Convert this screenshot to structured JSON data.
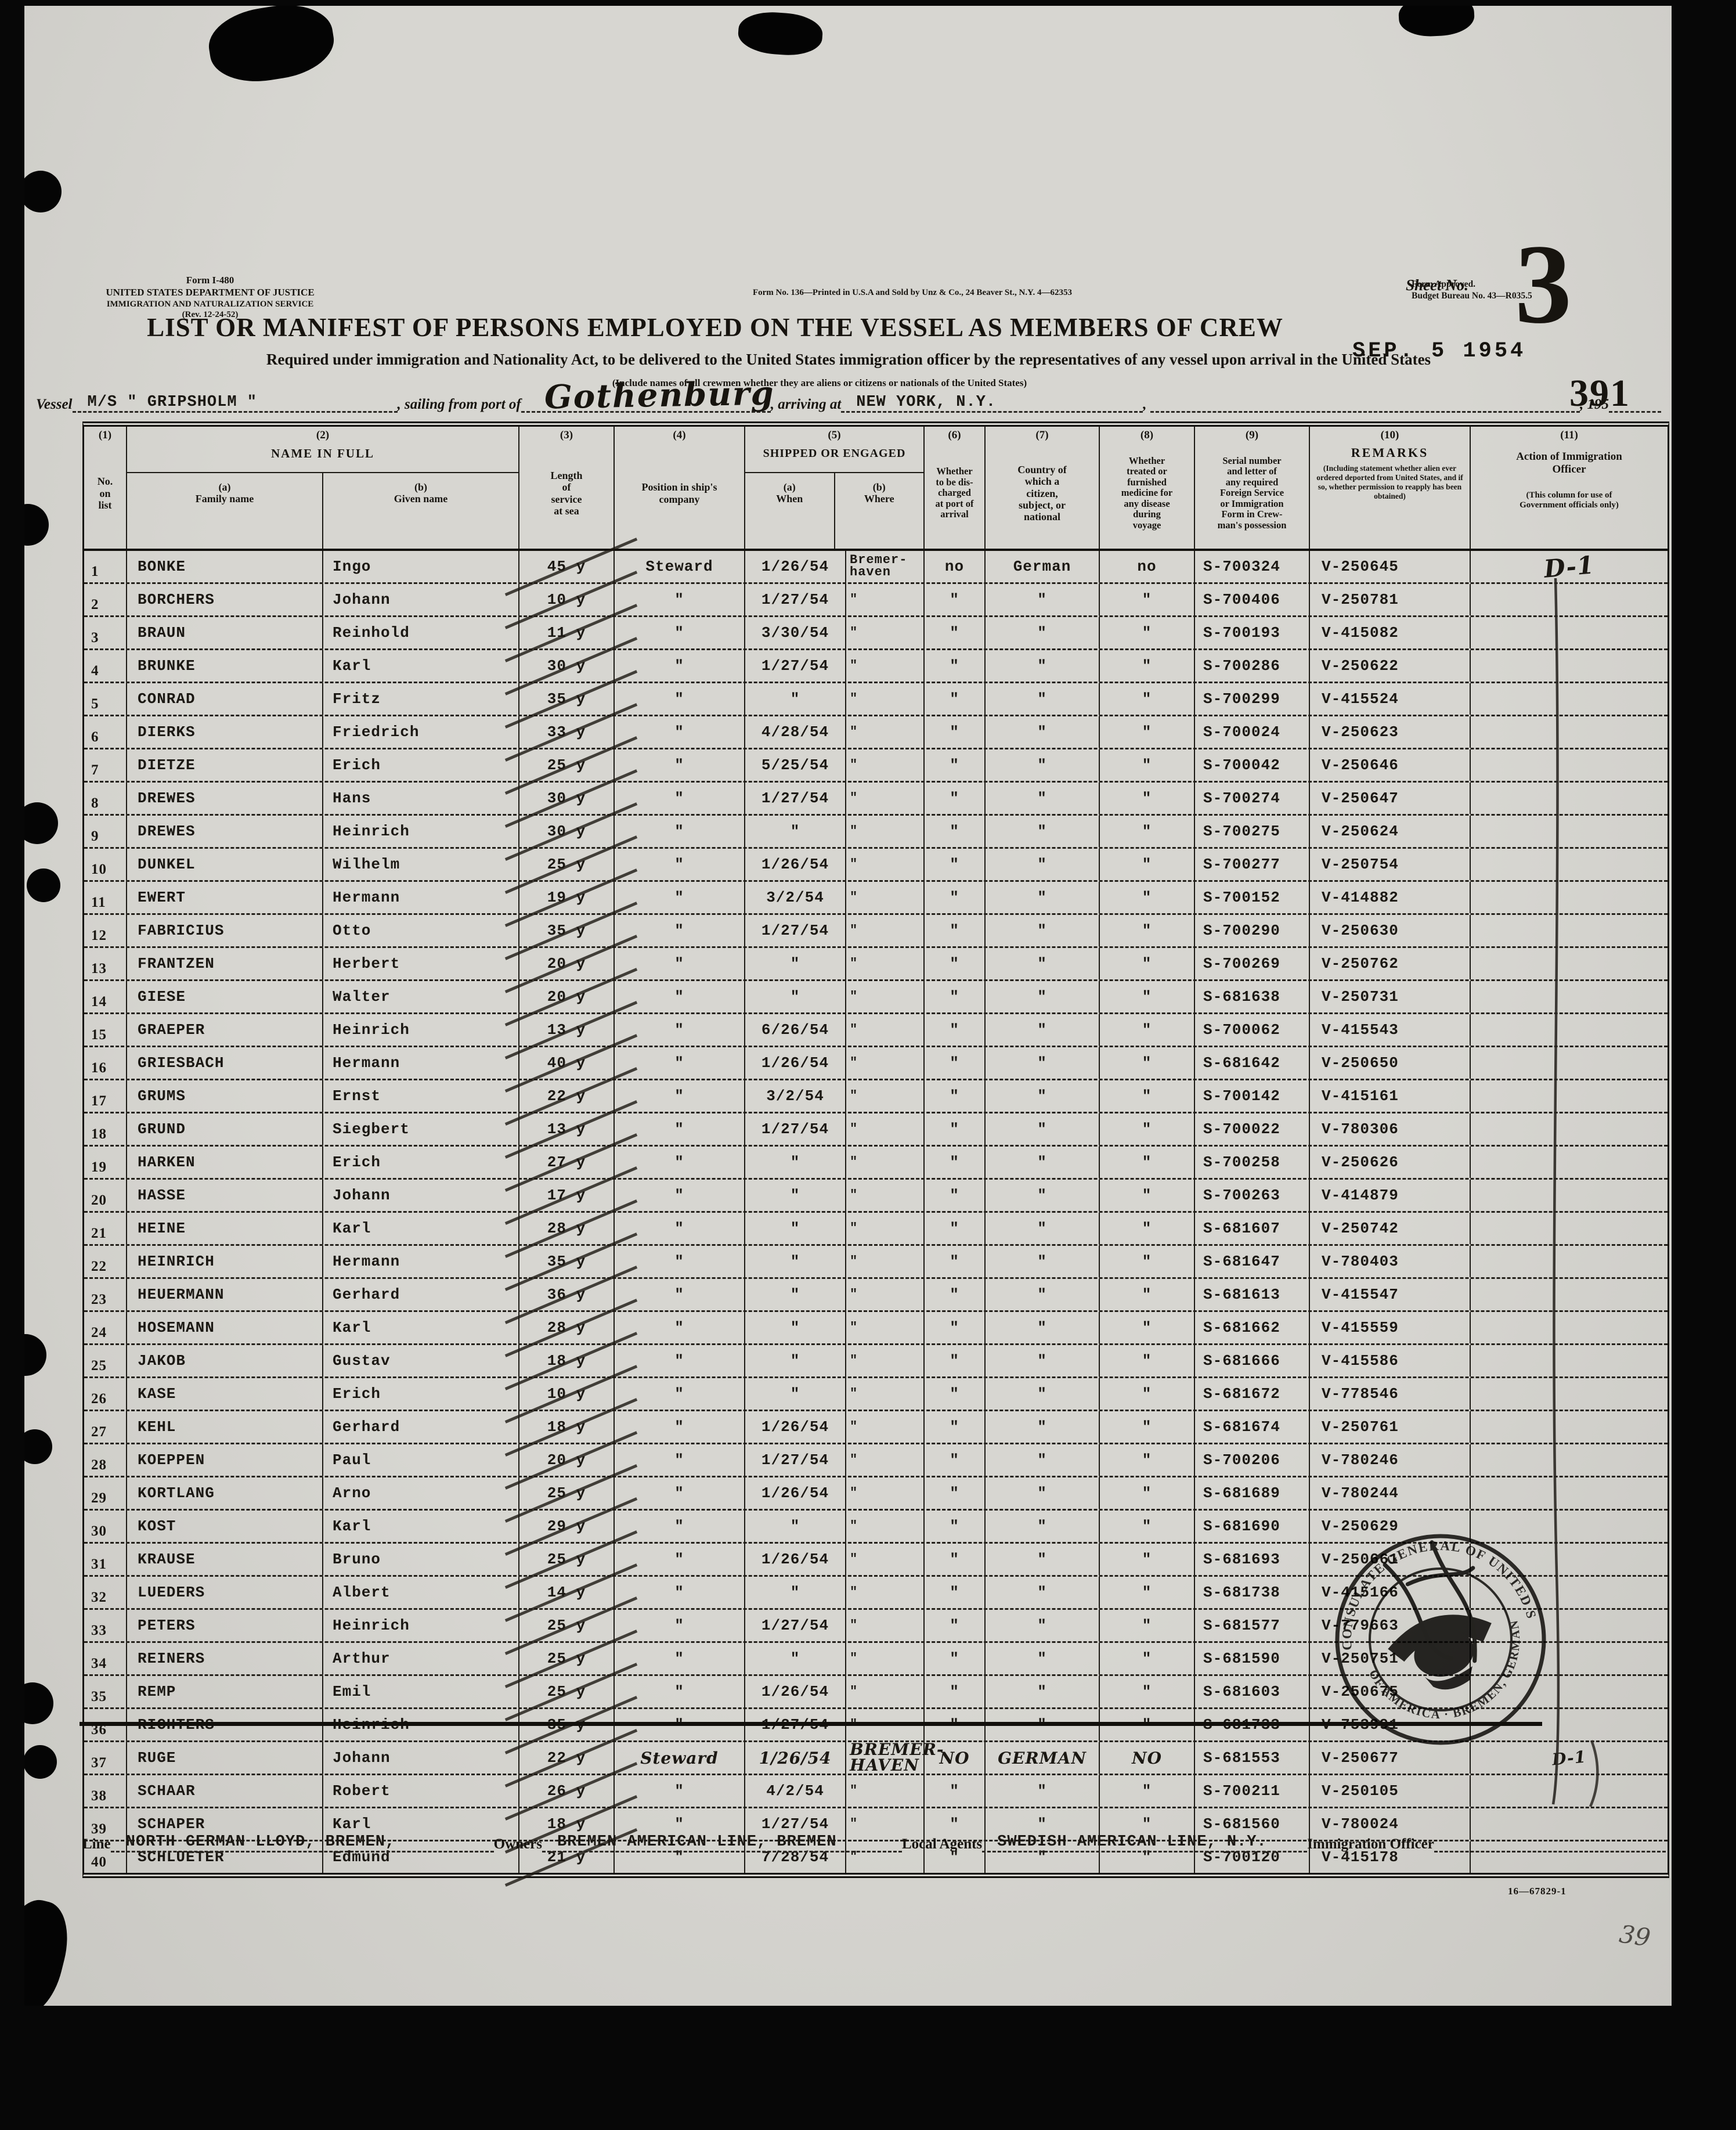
{
  "colors": {
    "paper": "#d3d2cd",
    "ink": "#17140f",
    "stamp_ink": "#1d1b18"
  },
  "form": {
    "form_id": "Form I-480",
    "agency_line1": "UNITED STATES DEPARTMENT OF JUSTICE",
    "agency_line2": "IMMIGRATION AND NATURALIZATION SERVICE",
    "revision": "(Rev. 12-24-52)",
    "print_note": "Form No. 136—Printed in U.S.A and Sold by Unz & Co., 24 Beaver St., N.Y. 4—62353",
    "approval_line1": "Form Approved.",
    "approval_line2": "Budget Bureau No. 43—R035.5",
    "title": "LIST OR MANIFEST OF PERSONS EMPLOYED ON THE VESSEL AS MEMBERS OF CREW",
    "sheet_label": "Sheet No.",
    "sheet_number": "3",
    "page_stamp": "391",
    "subtitle": "Required under immigration and Nationality Act, to be delivered to the United States immigration officer by the representatives of any vessel upon arrival in the United States",
    "include_note": "(Include names of all crewmen whether they are aliens or citizens or nationals of the United States)",
    "vessel_label": "Vessel",
    "vessel_name": "M/S \" GRIPSHOLM \"",
    "sailing_label": ", sailing from port of",
    "port_of_sailing": "Gothenburg",
    "arriving_label": ", arriving at",
    "port_of_arrival": "NEW YORK, N.Y.",
    "date_stamp": "SEP. 5 1954",
    "year_suffix": ", 195"
  },
  "table": {
    "nums": {
      "n1": "(1)",
      "n2": "(2)",
      "n3": "(3)",
      "n4": "(4)",
      "n5": "(5)",
      "n6": "(6)",
      "n7": "(7)",
      "n8": "(8)",
      "n9": "(9)",
      "n10": "(10)",
      "n11": "(11)"
    },
    "h": {
      "no": "No.\non\nlist",
      "name": "NAME IN FULL",
      "family": "(a)\nFamily name",
      "given": "(b)\nGiven name",
      "length": "Length\nof\nservice\nat sea",
      "position": "Position in ship's\ncompany",
      "shipped": "SHIPPED OR ENGAGED",
      "when": "(a)\nWhen",
      "where": "(b)\nWhere",
      "discharged": "Whether\nto be dis-\ncharged\nat port of\narrival",
      "country": "Country of\nwhich a\ncitizen,\nsubject, or\nnational",
      "medicine": "Whether\ntreated or\nfurnished\nmedicine for\nany disease\nduring\nvoyage",
      "serial": "Serial  number\nand  letter  of\nany  required\nForeign Service\nor  Immigration\nForm  in  Crew-\nman's possession",
      "remarks": "REMARKS",
      "remarks_note": "(Including statement whether alien ever ordered deported from United States, and if so, whether permission to reapply has been obtained)",
      "action": "Action  of  Immigration\nOfficer",
      "action_note": "(This column for use of\nGovernment officials only)"
    }
  },
  "rows": [
    {
      "no": "1",
      "family": "BONKE",
      "given": "Ingo",
      "length": "45 y",
      "position": "Steward",
      "when": "1/26/54",
      "where": "Bremer-\nhaven",
      "discharged": "no",
      "country": "German",
      "medicine": "no",
      "serial": "S-700324",
      "remarks": "V-250645",
      "action": "D-1"
    },
    {
      "no": "2",
      "family": "BORCHERS",
      "given": "Johann",
      "length": "10 y",
      "position": "\"",
      "when": "1/27/54",
      "where": "\"",
      "discharged": "\"",
      "country": "\"",
      "medicine": "\"",
      "serial": "S-700406",
      "remarks": "V-250781",
      "action": ""
    },
    {
      "no": "3",
      "family": "BRAUN",
      "given": "Reinhold",
      "length": "11 y",
      "position": "\"",
      "when": "3/30/54",
      "where": "\"",
      "discharged": "\"",
      "country": "\"",
      "medicine": "\"",
      "serial": "S-700193",
      "remarks": "V-415082",
      "action": ""
    },
    {
      "no": "4",
      "family": "BRUNKE",
      "given": "Karl",
      "length": "30 y",
      "position": "\"",
      "when": "1/27/54",
      "where": "\"",
      "discharged": "\"",
      "country": "\"",
      "medicine": "\"",
      "serial": "S-700286",
      "remarks": "V-250622",
      "action": ""
    },
    {
      "no": "5",
      "family": "CONRAD",
      "given": "Fritz",
      "length": "35 y",
      "position": "\"",
      "when": "\"",
      "where": "\"",
      "discharged": "\"",
      "country": "\"",
      "medicine": "\"",
      "serial": "S-700299",
      "remarks": "V-415524",
      "action": ""
    },
    {
      "no": "6",
      "family": "DIERKS",
      "given": "Friedrich",
      "length": "33 y",
      "position": "\"",
      "when": "4/28/54",
      "where": "\"",
      "discharged": "\"",
      "country": "\"",
      "medicine": "\"",
      "serial": "S-700024",
      "remarks": "V-250623",
      "action": ""
    },
    {
      "no": "7",
      "family": "DIETZE",
      "given": "Erich",
      "length": "25 y",
      "position": "\"",
      "when": "5/25/54",
      "where": "\"",
      "discharged": "\"",
      "country": "\"",
      "medicine": "\"",
      "serial": "S-700042",
      "remarks": "V-250646",
      "action": ""
    },
    {
      "no": "8",
      "family": "DREWES",
      "given": "Hans",
      "length": "30 y",
      "position": "\"",
      "when": "1/27/54",
      "where": "\"",
      "discharged": "\"",
      "country": "\"",
      "medicine": "\"",
      "serial": "S-700274",
      "remarks": "V-250647",
      "action": ""
    },
    {
      "no": "9",
      "family": "DREWES",
      "given": "Heinrich",
      "length": "30 y",
      "position": "\"",
      "when": "\"",
      "where": "\"",
      "discharged": "\"",
      "country": "\"",
      "medicine": "\"",
      "serial": "S-700275",
      "remarks": "V-250624",
      "action": ""
    },
    {
      "no": "10",
      "family": "DUNKEL",
      "given": "Wilhelm",
      "length": "25 y",
      "position": "\"",
      "when": "1/26/54",
      "where": "\"",
      "discharged": "\"",
      "country": "\"",
      "medicine": "\"",
      "serial": "S-700277",
      "remarks": "V-250754",
      "action": ""
    },
    {
      "no": "11",
      "family": "EWERT",
      "given": "Hermann",
      "length": "19 y",
      "position": "\"",
      "when": "3/2/54",
      "where": "\"",
      "discharged": "\"",
      "country": "\"",
      "medicine": "\"",
      "serial": "S-700152",
      "remarks": "V-414882",
      "action": ""
    },
    {
      "no": "12",
      "family": "FABRICIUS",
      "given": "Otto",
      "length": "35 y",
      "position": "\"",
      "when": "1/27/54",
      "where": "\"",
      "discharged": "\"",
      "country": "\"",
      "medicine": "\"",
      "serial": "S-700290",
      "remarks": "V-250630",
      "action": ""
    },
    {
      "no": "13",
      "family": "FRANTZEN",
      "given": "Herbert",
      "length": "20 y",
      "position": "\"",
      "when": "\"",
      "where": "\"",
      "discharged": "\"",
      "country": "\"",
      "medicine": "\"",
      "serial": "S-700269",
      "remarks": "V-250762",
      "action": ""
    },
    {
      "no": "14",
      "family": "GIESE",
      "given": "Walter",
      "length": "20 y",
      "position": "\"",
      "when": "\"",
      "where": "\"",
      "discharged": "\"",
      "country": "\"",
      "medicine": "\"",
      "serial": "S-681638",
      "remarks": "V-250731",
      "action": ""
    },
    {
      "no": "15",
      "family": "GRAEPER",
      "given": "Heinrich",
      "length": "13 y",
      "position": "\"",
      "when": "6/26/54",
      "where": "\"",
      "discharged": "\"",
      "country": "\"",
      "medicine": "\"",
      "serial": "S-700062",
      "remarks": "V-415543",
      "action": ""
    },
    {
      "no": "16",
      "family": "GRIESBACH",
      "given": "Hermann",
      "length": "40 y",
      "position": "\"",
      "when": "1/26/54",
      "where": "\"",
      "discharged": "\"",
      "country": "\"",
      "medicine": "\"",
      "serial": "S-681642",
      "remarks": "V-250650",
      "action": ""
    },
    {
      "no": "17",
      "family": "GRUMS",
      "given": "Ernst",
      "length": "22 y",
      "position": "\"",
      "when": "3/2/54",
      "where": "\"",
      "discharged": "\"",
      "country": "\"",
      "medicine": "\"",
      "serial": "S-700142",
      "remarks": "V-415161",
      "action": ""
    },
    {
      "no": "18",
      "family": "GRUND",
      "given": "Siegbert",
      "length": "13 y",
      "position": "\"",
      "when": "1/27/54",
      "where": "\"",
      "discharged": "\"",
      "country": "\"",
      "medicine": "\"",
      "serial": "S-700022",
      "remarks": "V-780306",
      "action": ""
    },
    {
      "no": "19",
      "family": "HARKEN",
      "given": "Erich",
      "length": "27 y",
      "position": "\"",
      "when": "\"",
      "where": "\"",
      "discharged": "\"",
      "country": "\"",
      "medicine": "\"",
      "serial": "S-700258",
      "remarks": "V-250626",
      "action": ""
    },
    {
      "no": "20",
      "family": "HASSE",
      "given": "Johann",
      "length": "17 y",
      "position": "\"",
      "when": "\"",
      "where": "\"",
      "discharged": "\"",
      "country": "\"",
      "medicine": "\"",
      "serial": "S-700263",
      "remarks": "V-414879",
      "action": ""
    },
    {
      "no": "21",
      "family": "HEINE",
      "given": "Karl",
      "length": "28 y",
      "position": "\"",
      "when": "\"",
      "where": "\"",
      "discharged": "\"",
      "country": "\"",
      "medicine": "\"",
      "serial": "S-681607",
      "remarks": "V-250742",
      "action": ""
    },
    {
      "no": "22",
      "family": "HEINRICH",
      "given": "Hermann",
      "length": "35 y",
      "position": "\"",
      "when": "\"",
      "where": "\"",
      "discharged": "\"",
      "country": "\"",
      "medicine": "\"",
      "serial": "S-681647",
      "remarks": "V-780403",
      "action": ""
    },
    {
      "no": "23",
      "family": "HEUERMANN",
      "given": "Gerhard",
      "length": "36 y",
      "position": "\"",
      "when": "\"",
      "where": "\"",
      "discharged": "\"",
      "country": "\"",
      "medicine": "\"",
      "serial": "S-681613",
      "remarks": "V-415547",
      "action": ""
    },
    {
      "no": "24",
      "family": "HOSEMANN",
      "given": "Karl",
      "length": "28 y",
      "position": "\"",
      "when": "\"",
      "where": "\"",
      "discharged": "\"",
      "country": "\"",
      "medicine": "\"",
      "serial": "S-681662",
      "remarks": "V-415559",
      "action": ""
    },
    {
      "no": "25",
      "family": "JAKOB",
      "given": "Gustav",
      "length": "18 y",
      "position": "\"",
      "when": "\"",
      "where": "\"",
      "discharged": "\"",
      "country": "\"",
      "medicine": "\"",
      "serial": "S-681666",
      "remarks": "V-415586",
      "action": ""
    },
    {
      "no": "26",
      "family": "KASE",
      "given": "Erich",
      "length": "10 y",
      "position": "\"",
      "when": "\"",
      "where": "\"",
      "discharged": "\"",
      "country": "\"",
      "medicine": "\"",
      "serial": "S-681672",
      "remarks": "V-778546",
      "action": ""
    },
    {
      "no": "27",
      "family": "KEHL",
      "given": "Gerhard",
      "length": "18 y",
      "position": "\"",
      "when": "1/26/54",
      "where": "\"",
      "discharged": "\"",
      "country": "\"",
      "medicine": "\"",
      "serial": "S-681674",
      "remarks": "V-250761",
      "action": ""
    },
    {
      "no": "28",
      "family": "KOEPPEN",
      "given": "Paul",
      "length": "20 y",
      "position": "\"",
      "when": "1/27/54",
      "where": "\"",
      "discharged": "\"",
      "country": "\"",
      "medicine": "\"",
      "serial": "S-700206",
      "remarks": "V-780246",
      "action": ""
    },
    {
      "no": "29",
      "family": "KORTLANG",
      "given": "Arno",
      "length": "25 y",
      "position": "\"",
      "when": "1/26/54",
      "where": "\"",
      "discharged": "\"",
      "country": "\"",
      "medicine": "\"",
      "serial": "S-681689",
      "remarks": "V-780244",
      "action": ""
    },
    {
      "no": "30",
      "family": "KOST",
      "given": "Karl",
      "length": "29 y",
      "position": "\"",
      "when": "\"",
      "where": "\"",
      "discharged": "\"",
      "country": "\"",
      "medicine": "\"",
      "serial": "S-681690",
      "remarks": "V-250629",
      "action": ""
    },
    {
      "no": "31",
      "family": "KRAUSE",
      "given": "Bruno",
      "length": "25 y",
      "position": "\"",
      "when": "1/26/54",
      "where": "\"",
      "discharged": "\"",
      "country": "\"",
      "medicine": "\"",
      "serial": "S-681693",
      "remarks": "V-250661",
      "action": ""
    },
    {
      "no": "32",
      "family": "LUEDERS",
      "given": "Albert",
      "length": "14 y",
      "position": "\"",
      "when": "\"",
      "where": "\"",
      "discharged": "\"",
      "country": "\"",
      "medicine": "\"",
      "serial": "S-681738",
      "remarks": "V-415166",
      "action": ""
    },
    {
      "no": "33",
      "family": "PETERS",
      "given": "Heinrich",
      "length": "25 y",
      "position": "\"",
      "when": "1/27/54",
      "where": "\"",
      "discharged": "\"",
      "country": "\"",
      "medicine": "\"",
      "serial": "S-681577",
      "remarks": "V-779663",
      "action": ""
    },
    {
      "no": "34",
      "family": "REINERS",
      "given": "Arthur",
      "length": "25 y",
      "position": "\"",
      "when": "\"",
      "where": "\"",
      "discharged": "\"",
      "country": "\"",
      "medicine": "\"",
      "serial": "S-681590",
      "remarks": "V-250751",
      "action": ""
    },
    {
      "no": "35",
      "family": "REMP",
      "given": "Emil",
      "length": "25 y",
      "position": "\"",
      "when": "1/26/54",
      "where": "\"",
      "discharged": "\"",
      "country": "\"",
      "medicine": "\"",
      "serial": "S-681603",
      "remarks": "V-250675",
      "action": ""
    },
    {
      "no": "36",
      "family": "RICHTERS",
      "given": "Heinrich",
      "length": "35 y",
      "position": "\"",
      "when": "1/27/54",
      "where": "\"",
      "discharged": "\"",
      "country": "\"",
      "medicine": "\"",
      "serial": "S-681733",
      "remarks": "V-753991",
      "action": "",
      "struck": true
    },
    {
      "no": "37",
      "family": "RUGE",
      "given": "Johann",
      "length": "22 y",
      "position": "Steward",
      "when": "1/26/54",
      "where": "BREMER-\nHAVEN",
      "discharged": "NO",
      "country": "GERMAN",
      "medicine": "NO",
      "serial": "S-681553",
      "remarks": "V-250677",
      "action": "D-1",
      "handwritten": true
    },
    {
      "no": "38",
      "family": "SCHAAR",
      "given": "Robert",
      "length": "26 y",
      "position": "\"",
      "when": "4/2/54",
      "where": "\"",
      "discharged": "\"",
      "country": "\"",
      "medicine": "\"",
      "serial": "S-700211",
      "remarks": "V-250105",
      "action": ""
    },
    {
      "no": "39",
      "family": "SCHAPER",
      "given": "Karl",
      "length": "18 y",
      "position": "\"",
      "when": "1/27/54",
      "where": "\"",
      "discharged": "\"",
      "country": "\"",
      "medicine": "\"",
      "serial": "S-681560",
      "remarks": "V-780024",
      "action": ""
    },
    {
      "no": "40",
      "family": "SCHLUETER",
      "given": "Edmund",
      "length": "21 y",
      "position": "\"",
      "when": "7/28/54",
      "where": "\"",
      "discharged": "\"",
      "country": "\"",
      "medicine": "\"",
      "serial": "S-700120",
      "remarks": "V-415178",
      "action": ""
    }
  ],
  "consulate_stamp": {
    "arc_top": "CONSULATE GENERAL OF UNITED STATES",
    "arc_bottom": "OF AMERICA · BREMEN, GERMANY"
  },
  "footer": {
    "line_label": "Line",
    "line_value": "NORTH GERMAN LLOYD, BREMEN,",
    "owners_label": "Owners",
    "owners_value": "BREMEN AMERICAN LINE, BREMEN",
    "agents_label": "Local Agents",
    "agents_value": "SWEDISH AMERICAN LINE, N.Y.",
    "officer_label": "Immigration Officer",
    "print_code": "16—67829-1",
    "pencil_note": "39"
  }
}
